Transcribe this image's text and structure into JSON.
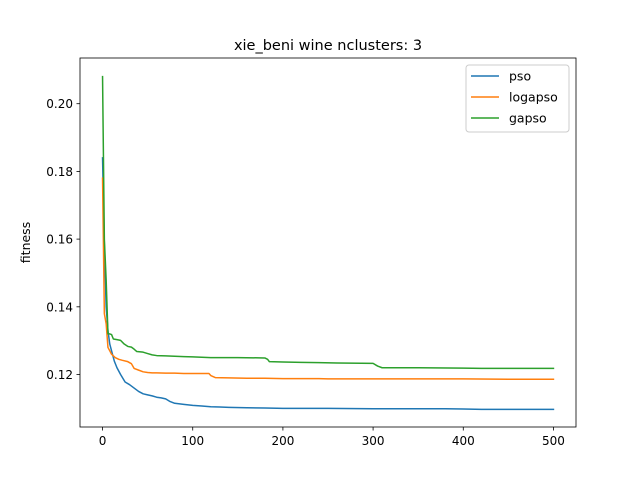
{
  "chart_data": {
    "type": "line",
    "title": "xie_beni wine nclusters: 3",
    "xlabel": "",
    "ylabel": "fitness",
    "xlim": [
      -25,
      525
    ],
    "ylim": [
      0.1045,
      0.2135
    ],
    "xticks": [
      0,
      100,
      200,
      300,
      400,
      500
    ],
    "yticks": [
      0.12,
      0.14,
      0.16,
      0.18,
      0.2
    ],
    "ytick_labels": [
      "0.12",
      "0.14",
      "0.16",
      "0.18",
      "0.20"
    ],
    "grid": false,
    "legend_position": "top-right",
    "series": [
      {
        "name": "pso",
        "color": "#1f77b4",
        "x": [
          0,
          2,
          4,
          6,
          8,
          10,
          13,
          16,
          20,
          25,
          30,
          35,
          40,
          45,
          50,
          55,
          60,
          65,
          70,
          75,
          80,
          90,
          100,
          110,
          120,
          130,
          140,
          160,
          180,
          200,
          250,
          300,
          350,
          380,
          400,
          420,
          450,
          480,
          500
        ],
        "y": [
          0.184,
          0.158,
          0.14,
          0.133,
          0.129,
          0.127,
          0.124,
          0.122,
          0.12,
          0.1178,
          0.117,
          0.116,
          0.115,
          0.1143,
          0.114,
          0.1137,
          0.1133,
          0.1131,
          0.1128,
          0.112,
          0.1115,
          0.1112,
          0.1109,
          0.1107,
          0.1105,
          0.1104,
          0.1103,
          0.1102,
          0.1101,
          0.11,
          0.11,
          0.1099,
          0.1099,
          0.1099,
          0.1098,
          0.1097,
          0.1097,
          0.1097,
          0.1097
        ]
      },
      {
        "name": "logapso",
        "color": "#ff7f0e",
        "x": [
          0,
          2,
          4,
          6,
          8,
          10,
          14,
          18,
          22,
          28,
          32,
          35,
          40,
          45,
          50,
          55,
          60,
          70,
          80,
          90,
          100,
          110,
          118,
          120,
          125,
          140,
          160,
          180,
          200,
          220,
          240,
          250,
          300,
          350,
          400,
          450,
          500
        ],
        "y": [
          0.178,
          0.138,
          0.135,
          0.128,
          0.127,
          0.126,
          0.125,
          0.1245,
          0.1242,
          0.1238,
          0.1232,
          0.1218,
          0.1213,
          0.1208,
          0.1206,
          0.1205,
          0.1205,
          0.1204,
          0.1204,
          0.1203,
          0.1203,
          0.1203,
          0.1203,
          0.1197,
          0.1191,
          0.119,
          0.1189,
          0.1189,
          0.1188,
          0.1188,
          0.1188,
          0.1187,
          0.1187,
          0.1187,
          0.1187,
          0.1186,
          0.1186
        ]
      },
      {
        "name": "gapso",
        "color": "#2ca02c",
        "x": [
          0,
          2,
          4,
          6,
          8,
          10,
          12,
          16,
          20,
          24,
          28,
          32,
          35,
          38,
          45,
          50,
          55,
          60,
          70,
          80,
          90,
          100,
          110,
          120,
          150,
          180,
          183,
          185,
          200,
          220,
          240,
          260,
          300,
          305,
          310,
          350,
          400,
          420,
          450,
          500
        ],
        "y": [
          0.208,
          0.16,
          0.148,
          0.132,
          0.132,
          0.1318,
          0.1305,
          0.1303,
          0.1301,
          0.129,
          0.1283,
          0.1281,
          0.1275,
          0.1268,
          0.1266,
          0.1262,
          0.1258,
          0.1256,
          0.1255,
          0.1254,
          0.1253,
          0.1252,
          0.1251,
          0.125,
          0.125,
          0.1249,
          0.1245,
          0.1238,
          0.1237,
          0.1236,
          0.1235,
          0.1234,
          0.1233,
          0.1225,
          0.122,
          0.122,
          0.1219,
          0.1218,
          0.1218,
          0.1218
        ]
      }
    ]
  }
}
